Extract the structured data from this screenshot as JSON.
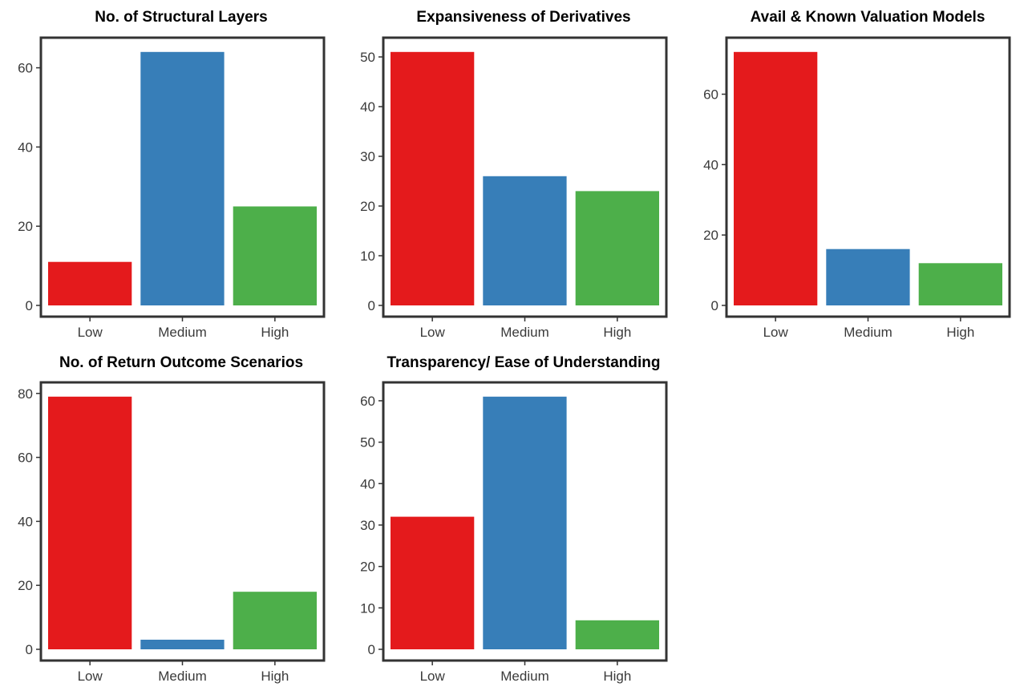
{
  "chart_data": [
    {
      "type": "bar",
      "title": "No. of Structural Layers",
      "categories": [
        "Low",
        "Medium",
        "High"
      ],
      "values": [
        11,
        64,
        25
      ],
      "colors": [
        "#E41A1C",
        "#377EB8",
        "#4DAF4A"
      ],
      "yticks": [
        "0",
        "20",
        "40",
        "60"
      ],
      "ylim": [
        0,
        67.2
      ],
      "grid": false
    },
    {
      "type": "bar",
      "title": "Expansiveness of Derivatives",
      "categories": [
        "Low",
        "Medium",
        "High"
      ],
      "values": [
        51,
        26,
        23
      ],
      "colors": [
        "#E41A1C",
        "#377EB8",
        "#4DAF4A"
      ],
      "yticks": [
        "0",
        "10",
        "20",
        "30",
        "40",
        "50"
      ],
      "ylim": [
        0,
        53.55
      ],
      "grid": false
    },
    {
      "type": "bar",
      "title": "Avail & Known Valuation Models",
      "categories": [
        "Low",
        "Medium",
        "High"
      ],
      "values": [
        72,
        16,
        12
      ],
      "colors": [
        "#E41A1C",
        "#377EB8",
        "#4DAF4A"
      ],
      "yticks": [
        "0",
        "20",
        "40",
        "60"
      ],
      "ylim": [
        0,
        75.6
      ],
      "grid": false
    },
    {
      "type": "bar",
      "title": "No. of Return Outcome Scenarios",
      "categories": [
        "Low",
        "Medium",
        "High"
      ],
      "values": [
        79,
        3,
        18
      ],
      "colors": [
        "#E41A1C",
        "#377EB8",
        "#4DAF4A"
      ],
      "yticks": [
        "0",
        "20",
        "40",
        "60",
        "80"
      ],
      "ylim": [
        0,
        82.95
      ],
      "grid": false
    },
    {
      "type": "bar",
      "title": "Transparency/ Ease of Understanding",
      "categories": [
        "Low",
        "Medium",
        "High"
      ],
      "values": [
        32,
        61,
        7
      ],
      "colors": [
        "#E41A1C",
        "#377EB8",
        "#4DAF4A"
      ],
      "yticks": [
        "0",
        "10",
        "20",
        "30",
        "40",
        "50",
        "60"
      ],
      "ylim": [
        0,
        64.05
      ],
      "grid": false
    }
  ]
}
